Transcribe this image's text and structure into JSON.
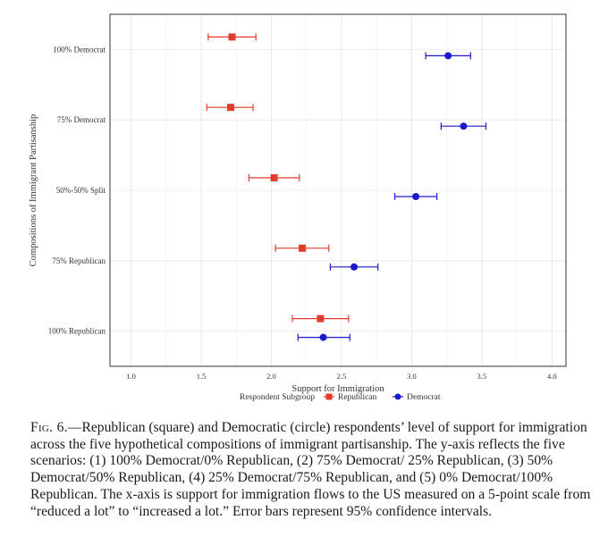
{
  "chart_data": {
    "type": "dot-errorbar",
    "title": "",
    "xlabel": "Support for Immigration",
    "ylabel": "Compositions of Immigrant Partisanship",
    "xlim": [
      0.85,
      4.1
    ],
    "x_ticks": [
      "1.0",
      "1.5",
      "2.0",
      "2.5",
      "3.0",
      "3.5",
      "4.0"
    ],
    "categories": [
      "100% Democrat",
      "75% Democrat",
      "50%-50% Split",
      "75% Republican",
      "100% Republican"
    ],
    "legend_title": "Respondent Subgroup",
    "legend_position": "bottom",
    "series": [
      {
        "name": "Republican",
        "marker": "square",
        "color": "#e53b2c",
        "values": [
          1.72,
          1.71,
          2.02,
          2.22,
          2.35
        ],
        "ci_low": [
          1.55,
          1.54,
          1.84,
          2.03,
          2.15
        ],
        "ci_high": [
          1.89,
          1.87,
          2.2,
          2.41,
          2.55
        ]
      },
      {
        "name": "Democrat",
        "marker": "circle",
        "color": "#1a1acc",
        "values": [
          3.26,
          3.37,
          3.03,
          2.59,
          2.37
        ],
        "ci_low": [
          3.1,
          3.21,
          2.88,
          2.42,
          2.19
        ],
        "ci_high": [
          3.42,
          3.53,
          3.18,
          2.76,
          2.56
        ]
      }
    ]
  },
  "caption": {
    "label": "Fig. 6.",
    "text": "—Republican (square) and Democratic (circle) respondents’ level of support for immigration across the five hypothetical compositions of immigrant partisanship. The y-axis reflects the five scenarios: (1) 100% Democrat/0% Republican, (2) 75% Democrat/ 25% Republican, (3) 50% Democrat/50% Republican, (4) 25% Democrat/75% Republican, and (5) 0% Democrat/100% Republican. The x-axis is support for immigration flows to the US measured on a 5-point scale from “reduced a lot” to “increased a lot.” Error bars represent 95% confidence intervals."
  }
}
